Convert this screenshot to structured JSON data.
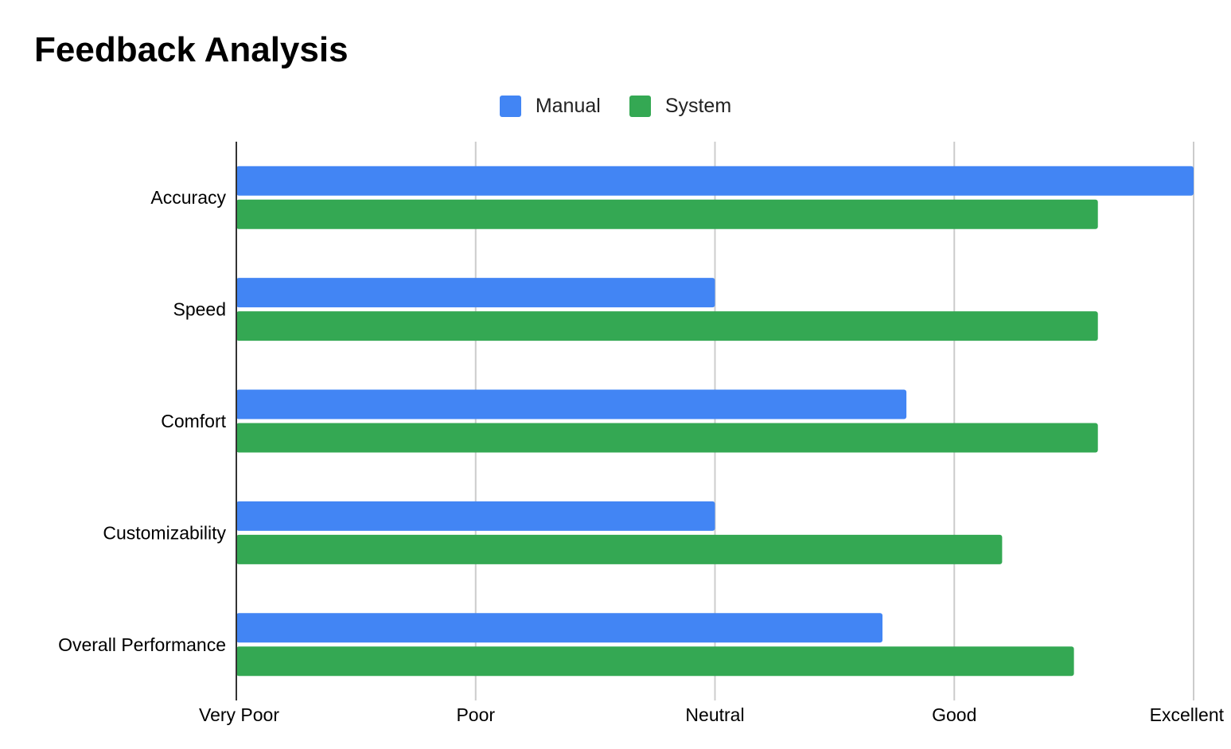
{
  "chart_data": {
    "type": "bar",
    "orientation": "horizontal",
    "title": "Feedback Analysis",
    "xlabel": "",
    "ylabel": "",
    "categories": [
      "Accuracy",
      "Speed",
      "Comfort",
      "Customizability",
      "Overall Performance"
    ],
    "x_ticks": [
      "Very Poor",
      "Poor",
      "Neutral",
      "Good",
      "Excellent"
    ],
    "xlim": [
      1,
      5
    ],
    "series": [
      {
        "name": "Manual",
        "color": "#4285F4",
        "values": [
          5.0,
          3.0,
          3.8,
          3.0,
          3.7
        ]
      },
      {
        "name": "System",
        "color": "#34A853",
        "values": [
          4.6,
          4.6,
          4.6,
          4.2,
          4.5
        ]
      }
    ],
    "legend_position": "top",
    "grid": true
  }
}
